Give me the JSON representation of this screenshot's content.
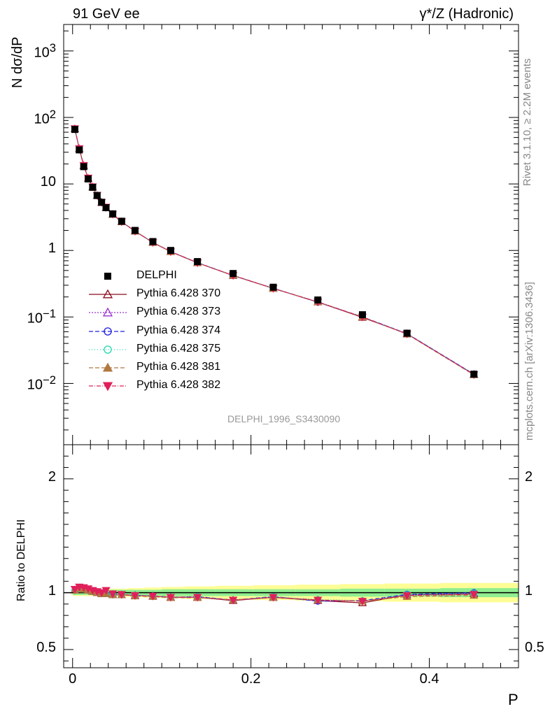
{
  "header": {
    "left_title": "91 GeV ee",
    "right_title": "γ*/Z (Hadronic)"
  },
  "side_labels": {
    "rivet": "Rivet 3.1.10, ≥ 2.2M events",
    "mcplots": "mcplots.cern.ch [arXiv:1306.3436]"
  },
  "colors": {
    "data": "#000000",
    "p370": "#8b0a1e",
    "p373": "#9b30d0",
    "p374": "#2020e0",
    "p375": "#20d8b0",
    "p381": "#b07840",
    "p382": "#e0205a",
    "band_inner": "#90ee90",
    "band_outer": "#fdfd96"
  },
  "chart_data": {
    "type": "scatter",
    "analysis_label": "DELPHI_1996_S3430090",
    "xlabel": "P",
    "ylabel": "N dσ/dP",
    "ratio_ylabel": "Ratio to DELPHI",
    "xlim": [
      -0.01,
      0.5
    ],
    "ylim": [
      0.0012,
      2500
    ],
    "yscale": "log",
    "ratio_ylim": [
      0.34,
      2.3
    ],
    "x_ticks": [
      "0",
      "0.2",
      "0.4"
    ],
    "y_ticks": [
      "10^-2",
      "10^-1",
      "1",
      "10",
      "10^2",
      "10^3"
    ],
    "ratio_ticks": [
      "0.5",
      "1",
      "2"
    ],
    "legend_position": "center-left",
    "x": [
      0.0025,
      0.0075,
      0.0125,
      0.0175,
      0.0225,
      0.0275,
      0.0325,
      0.0375,
      0.045,
      0.055,
      0.07,
      0.09,
      0.11,
      0.14,
      0.18,
      0.225,
      0.275,
      0.325,
      0.375,
      0.45
    ],
    "data": {
      "name": "DELPHI",
      "values": [
        66,
        32.5,
        18.2,
        11.9,
        8.9,
        6.7,
        5.3,
        4.4,
        3.55,
        2.75,
        2.0,
        1.36,
        1.0,
        0.68,
        0.45,
        0.28,
        0.18,
        0.108,
        0.057,
        0.0138
      ],
      "band_inner": [
        0.02,
        0.02,
        0.02,
        0.02,
        0.02,
        0.02,
        0.02,
        0.02,
        0.025,
        0.025,
        0.025,
        0.025,
        0.03,
        0.03,
        0.03,
        0.03,
        0.03,
        0.035,
        0.035,
        0.04
      ],
      "band_outer": [
        0.03,
        0.03,
        0.03,
        0.03,
        0.03,
        0.03,
        0.03,
        0.03,
        0.035,
        0.035,
        0.04,
        0.045,
        0.05,
        0.055,
        0.06,
        0.065,
        0.07,
        0.075,
        0.08,
        0.085
      ]
    },
    "series": [
      {
        "name": "Pythia 6.428 370",
        "key": "p370",
        "marker": "triangle-up-open",
        "dash": "",
        "ratio": [
          1.02,
          1.04,
          1.03,
          1.02,
          1.01,
          1.0,
          0.99,
          0.99,
          0.98,
          0.98,
          0.975,
          0.97,
          0.96,
          0.96,
          0.93,
          0.96,
          0.93,
          0.91,
          0.98,
          0.99
        ]
      },
      {
        "name": "Pythia 6.428 373",
        "key": "p373",
        "marker": "triangle-up-open",
        "dash": "2,2",
        "ratio": [
          1.025,
          1.04,
          1.035,
          1.025,
          1.015,
          1.005,
          0.995,
          0.99,
          0.985,
          0.98,
          0.975,
          0.97,
          0.96,
          0.96,
          0.935,
          0.96,
          0.935,
          0.925,
          0.98,
          0.995
        ]
      },
      {
        "name": "Pythia 6.428 374",
        "key": "p374",
        "marker": "circle-open",
        "dash": "6,3",
        "ratio": [
          1.02,
          1.04,
          1.03,
          1.02,
          1.01,
          1.0,
          0.99,
          0.99,
          0.98,
          0.98,
          0.975,
          0.97,
          0.96,
          0.965,
          0.935,
          0.965,
          0.925,
          0.93,
          0.985,
          1.0
        ]
      },
      {
        "name": "Pythia 6.428 375",
        "key": "p375",
        "marker": "circle-open",
        "dash": "1,3",
        "ratio": [
          1.02,
          1.04,
          1.03,
          1.02,
          1.01,
          1.0,
          0.99,
          0.99,
          0.98,
          0.98,
          0.975,
          0.97,
          0.96,
          0.965,
          0.935,
          0.965,
          0.94,
          0.93,
          0.98,
          0.995
        ]
      },
      {
        "name": "Pythia 6.428 381",
        "key": "p381",
        "marker": "triangle-up-filled",
        "dash": "6,3",
        "ratio": [
          1.02,
          1.04,
          1.03,
          1.02,
          1.01,
          1.0,
          0.99,
          0.99,
          0.98,
          0.98,
          0.97,
          0.965,
          0.955,
          0.955,
          0.935,
          0.955,
          0.935,
          0.925,
          0.965,
          0.975
        ]
      },
      {
        "name": "Pythia 6.428 382",
        "key": "p382",
        "marker": "triangle-down-filled",
        "dash": "6,2,1,2",
        "ratio": [
          1.03,
          1.05,
          1.045,
          1.035,
          1.02,
          1.01,
          1.0,
          1.02,
          0.99,
          0.985,
          0.975,
          0.97,
          0.96,
          0.96,
          0.935,
          0.96,
          0.935,
          0.925,
          0.975,
          0.985
        ]
      }
    ]
  }
}
